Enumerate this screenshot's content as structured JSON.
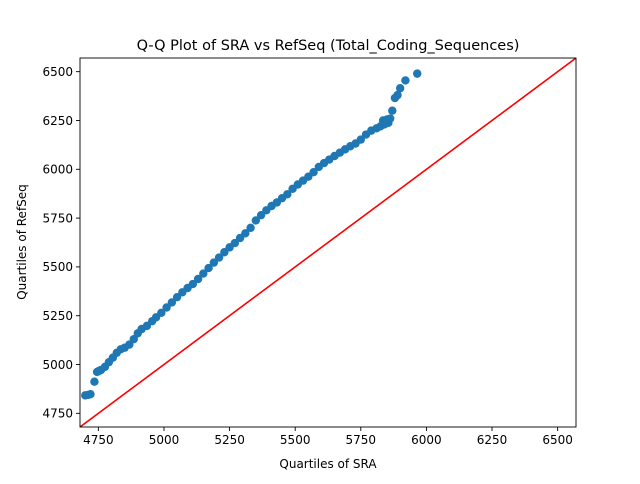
{
  "chart_data": {
    "type": "scatter",
    "title": "Q-Q Plot of SRA vs RefSeq (Total_Coding_Sequences)",
    "xlabel": "Quartiles of SRA",
    "ylabel": "Quartiles of RefSeq",
    "xlim": [
      4680,
      6570
    ],
    "ylim": [
      4680,
      6570
    ],
    "xticks": [
      4750,
      5000,
      5250,
      5500,
      5750,
      6000,
      6250,
      6500
    ],
    "yticks": [
      4750,
      5000,
      5250,
      5500,
      5750,
      6000,
      6250,
      6500
    ],
    "grid": false,
    "colors": {
      "points": "#1f77b4",
      "reference_line": "#ff0000"
    },
    "reference_line": {
      "from": [
        4680,
        4680
      ],
      "to": [
        6570,
        6570
      ]
    },
    "points": [
      [
        4700,
        4842
      ],
      [
        4712,
        4845
      ],
      [
        4720,
        4848
      ],
      [
        4735,
        4912
      ],
      [
        4745,
        4962
      ],
      [
        4752,
        4967
      ],
      [
        4760,
        4972
      ],
      [
        4775,
        4988
      ],
      [
        4790,
        5012
      ],
      [
        4805,
        5035
      ],
      [
        4820,
        5060
      ],
      [
        4835,
        5078
      ],
      [
        4850,
        5086
      ],
      [
        4868,
        5102
      ],
      [
        4885,
        5130
      ],
      [
        4900,
        5160
      ],
      [
        4915,
        5182
      ],
      [
        4935,
        5198
      ],
      [
        4955,
        5222
      ],
      [
        4970,
        5242
      ],
      [
        4990,
        5265
      ],
      [
        5010,
        5292
      ],
      [
        5030,
        5318
      ],
      [
        5050,
        5345
      ],
      [
        5070,
        5370
      ],
      [
        5090,
        5392
      ],
      [
        5110,
        5412
      ],
      [
        5130,
        5438
      ],
      [
        5150,
        5466
      ],
      [
        5170,
        5494
      ],
      [
        5190,
        5522
      ],
      [
        5210,
        5548
      ],
      [
        5230,
        5575
      ],
      [
        5250,
        5600
      ],
      [
        5270,
        5622
      ],
      [
        5290,
        5648
      ],
      [
        5310,
        5672
      ],
      [
        5330,
        5700
      ],
      [
        5350,
        5738
      ],
      [
        5370,
        5765
      ],
      [
        5390,
        5790
      ],
      [
        5410,
        5812
      ],
      [
        5430,
        5830
      ],
      [
        5450,
        5852
      ],
      [
        5470,
        5872
      ],
      [
        5490,
        5900
      ],
      [
        5510,
        5922
      ],
      [
        5530,
        5942
      ],
      [
        5550,
        5962
      ],
      [
        5570,
        5985
      ],
      [
        5590,
        6012
      ],
      [
        5610,
        6032
      ],
      [
        5630,
        6050
      ],
      [
        5650,
        6068
      ],
      [
        5670,
        6085
      ],
      [
        5690,
        6102
      ],
      [
        5710,
        6118
      ],
      [
        5730,
        6132
      ],
      [
        5750,
        6152
      ],
      [
        5770,
        6178
      ],
      [
        5790,
        6198
      ],
      [
        5810,
        6210
      ],
      [
        5825,
        6220
      ],
      [
        5840,
        6230
      ],
      [
        5855,
        6238
      ],
      [
        5835,
        6250
      ],
      [
        5850,
        6255
      ],
      [
        5862,
        6260
      ],
      [
        5870,
        6300
      ],
      [
        5880,
        6365
      ],
      [
        5890,
        6380
      ],
      [
        5900,
        6415
      ],
      [
        5920,
        6455
      ],
      [
        5965,
        6490
      ]
    ]
  }
}
